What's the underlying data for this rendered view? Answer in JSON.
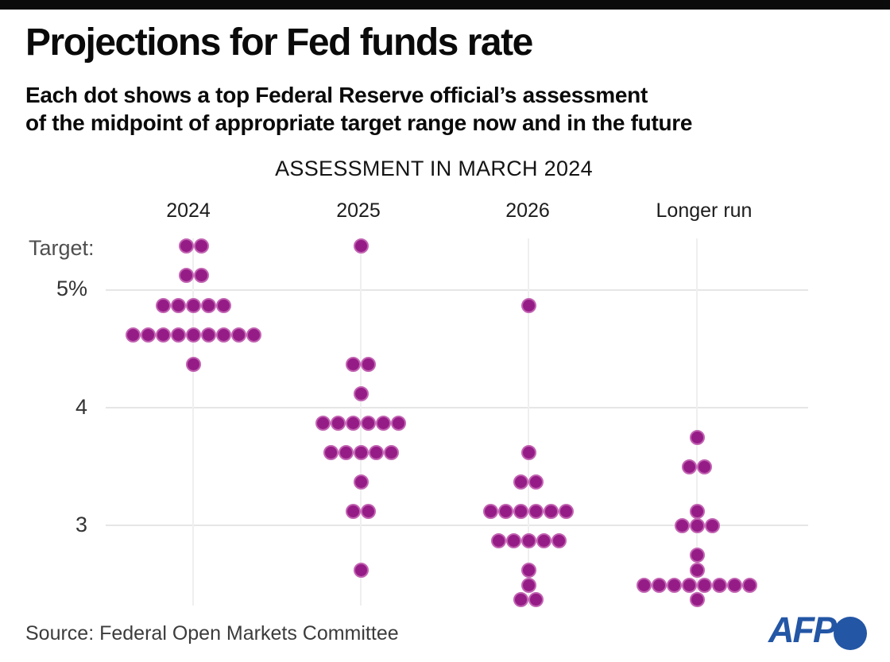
{
  "colors": {
    "dot_fill": "#951c86",
    "dot_rim": "#c263b2",
    "afp_blue": "#2356a5",
    "top_bar": "#0b0b0b",
    "gridline": "#e6e6e6"
  },
  "header": {
    "title": "Projections for Fed funds rate",
    "subtitle_line1": "Each dot shows a top Federal Reserve official’s assessment",
    "subtitle_line2": "of the midpoint of appropriate target range now and in the future"
  },
  "chart": {
    "y_axis": {
      "label": "Target:",
      "ticks": [
        "5%",
        "4",
        "3"
      ]
    }
  },
  "chart_data": {
    "type": "scatter",
    "subtype": "dot-plot",
    "title": "ASSESSMENT IN MARCH 2024",
    "categories": [
      "2024",
      "2025",
      "2026",
      "Longer run"
    ],
    "unit": "percent",
    "ylim": [
      2.25,
      5.5
    ],
    "y_gridlines": [
      5,
      4,
      3
    ],
    "grid": "on",
    "series": [
      {
        "name": "2024",
        "points": [
          {
            "value": 5.375,
            "count": 2
          },
          {
            "value": 5.125,
            "count": 2
          },
          {
            "value": 4.875,
            "count": 5
          },
          {
            "value": 4.625,
            "count": 9
          },
          {
            "value": 4.375,
            "count": 1
          }
        ]
      },
      {
        "name": "2025",
        "points": [
          {
            "value": 5.375,
            "count": 1
          },
          {
            "value": 4.375,
            "count": 2
          },
          {
            "value": 4.125,
            "count": 1
          },
          {
            "value": 3.875,
            "count": 6
          },
          {
            "value": 3.625,
            "count": 5
          },
          {
            "value": 3.375,
            "count": 1
          },
          {
            "value": 3.125,
            "count": 2
          },
          {
            "value": 2.625,
            "count": 1
          }
        ]
      },
      {
        "name": "2026",
        "points": [
          {
            "value": 4.875,
            "count": 1
          },
          {
            "value": 3.625,
            "count": 1
          },
          {
            "value": 3.375,
            "count": 2
          },
          {
            "value": 3.125,
            "count": 6
          },
          {
            "value": 2.875,
            "count": 5
          },
          {
            "value": 2.625,
            "count": 1
          },
          {
            "value": 2.5,
            "count": 1
          },
          {
            "value": 2.375,
            "count": 2
          }
        ]
      },
      {
        "name": "Longer run",
        "points": [
          {
            "value": 3.75,
            "count": 1
          },
          {
            "value": 3.5,
            "count": 2
          },
          {
            "value": 3.125,
            "count": 1
          },
          {
            "value": 3.0,
            "count": 3
          },
          {
            "value": 2.75,
            "count": 1
          },
          {
            "value": 2.625,
            "count": 1
          },
          {
            "value": 2.5,
            "count": 8
          },
          {
            "value": 2.375,
            "count": 1
          }
        ]
      }
    ]
  },
  "footer": {
    "source": "Source: Federal Open Markets Committee",
    "logo_text": "AFP"
  }
}
